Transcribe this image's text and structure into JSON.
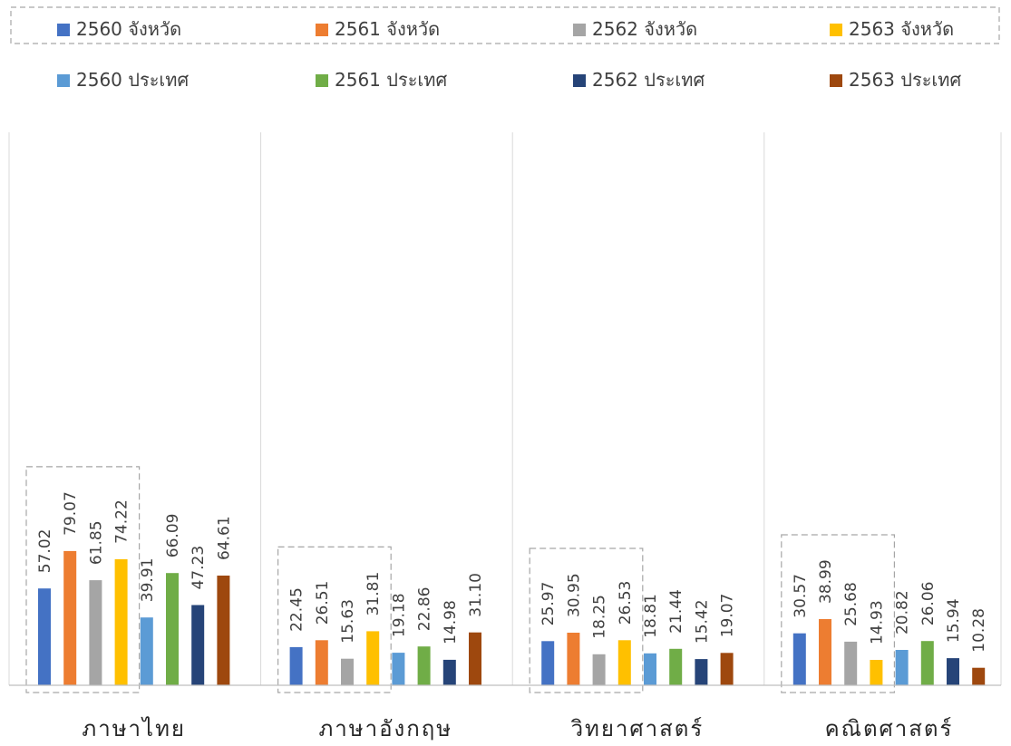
{
  "chart_data": {
    "type": "bar",
    "categories": [
      "ภาษาไทย",
      "ภาษาอังกฤษ",
      "วิทยาศาสตร์",
      "คณิตศาสตร์"
    ],
    "series": [
      {
        "name": "2560 จังหวัด",
        "color": "#4472C4",
        "values": [
          57.02,
          22.45,
          25.97,
          30.57
        ],
        "labels": [
          "57.02",
          "22.45",
          "25.97",
          "30.57"
        ]
      },
      {
        "name": "2561 จังหวัด",
        "color": "#ED7D31",
        "values": [
          79.07,
          26.51,
          30.95,
          38.99
        ],
        "labels": [
          "79.07",
          "26.51",
          "30.95",
          "38.99"
        ]
      },
      {
        "name": "2562 จังหวัด",
        "color": "#A5A5A5",
        "values": [
          61.85,
          15.63,
          18.25,
          25.68
        ],
        "labels": [
          "61.85",
          "15.63",
          "18.25",
          "25.68"
        ]
      },
      {
        "name": "2563 จังหวัด",
        "color": "#FFC000",
        "values": [
          74.22,
          31.81,
          26.53,
          14.93
        ],
        "labels": [
          "74.22",
          "31.81",
          "26.53",
          "14.93"
        ]
      },
      {
        "name": "2560 ประเทศ",
        "color": "#5B9BD5",
        "values": [
          39.91,
          19.18,
          18.81,
          20.82
        ],
        "labels": [
          "39.91",
          "19.18",
          "18.81",
          "20.82"
        ]
      },
      {
        "name": "2561 ประเทศ",
        "color": "#70AD47",
        "values": [
          66.09,
          22.86,
          21.44,
          26.06
        ],
        "labels": [
          "66.09",
          "22.86",
          "21.44",
          "26.06"
        ]
      },
      {
        "name": "2562 ประเทศ",
        "color": "#264478",
        "values": [
          47.23,
          14.98,
          15.42,
          15.94
        ],
        "labels": [
          "47.23",
          "14.98",
          "15.42",
          "15.94"
        ]
      },
      {
        "name": "2563 ประเทศ",
        "color": "#9E480E",
        "values": [
          64.61,
          31.1,
          19.07,
          10.28
        ],
        "labels": [
          "64.61",
          "31.10",
          "19.07",
          "10.28"
        ]
      }
    ],
    "ylim": [
      0,
      90
    ],
    "legend_position": "top",
    "grid": false,
    "category_separators": true,
    "highlight": "dashed box around the four provincial (จังหวัด) bars of each category"
  }
}
